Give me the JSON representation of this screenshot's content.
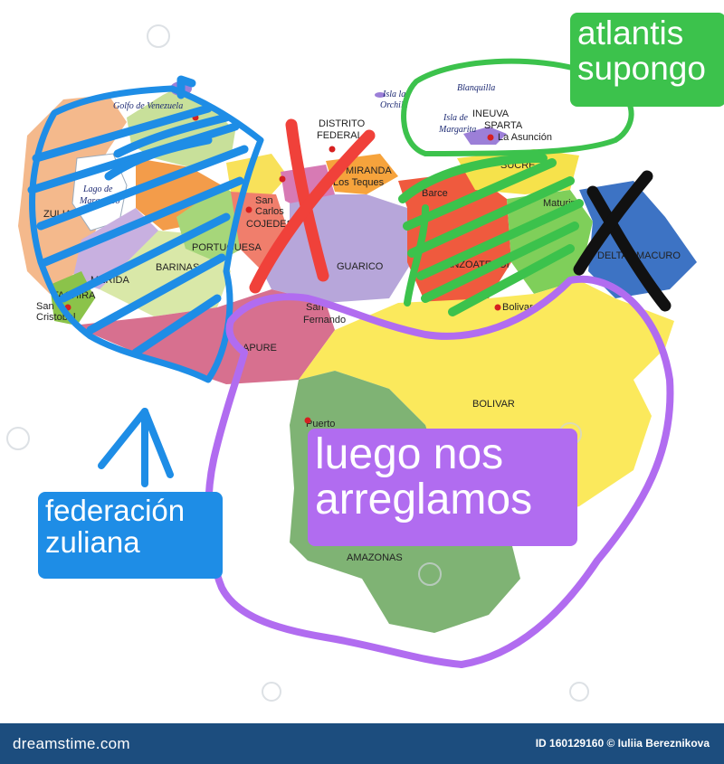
{
  "map": {
    "regions": {
      "golfo": "Golfo de Venezuela",
      "lago_1": "Lago de",
      "lago_2": "Maracaibo",
      "zulia": "ZULIA",
      "tachira": "TACHIRA",
      "san_cristobal_1": "San",
      "san_cristobal_2": "Cristobal",
      "distrito_1": "DISTRITO",
      "distrito_2": "FEDERAL",
      "miranda": "MIRANDA",
      "los_teques": "Los Teques",
      "san_carlos_1": "San",
      "san_carlos_2": "Carlos",
      "cojedes": "COJEDES",
      "guarico": "GUARICO",
      "san_fernando_1": "San",
      "san_fernando_2": "Fernando",
      "isla_orchila_1": "Isla la",
      "isla_orchila_2": "Orchila",
      "blanquilla": "Blanquilla",
      "isla_margarita_1": "Isla de",
      "isla_margarita_2": "Margarita",
      "nueva_esparta_1": "INEUVA",
      "nueva_esparta_2": "SPARTA",
      "la_asuncion": "La Asunción",
      "sucre": "SUCRE",
      "barcelona": "Barce",
      "anzoategui": "ANZOATEGUI",
      "bolivar": "BOLIVAR",
      "bolivar_city": "Bolivar",
      "amazonas": "AMAZONAS",
      "puerto_1": "Puerto",
      "maturin": "Maturin",
      "delta": "DELTA AMACURO",
      "portuguesa": "PORTUGUESA",
      "apure": "APURE",
      "barinas": "BARINAS",
      "merida": "MERIDA"
    }
  },
  "annotations": {
    "atlantis": [
      "atlantis",
      "supongo"
    ],
    "luego": [
      "luego nos",
      "arreglamos"
    ],
    "federacion": [
      "federación",
      "zuliana"
    ]
  },
  "footer": {
    "brand": "dreamstime.com",
    "credit": "ID 160129160 © Iuliia Bereznikova"
  },
  "colors": {
    "blue_scribble": "#1e8de6",
    "green_scribble": "#3cc24c",
    "purple_scribble": "#b16cf0",
    "red_cross": "#f0413a",
    "black_cross": "#111111",
    "footer_bg": "#1c4d7e"
  },
  "icons": [
    "red-x-mark-icon",
    "black-x-mark-icon",
    "blue-up-arrow-icon",
    "location-dot-icon"
  ]
}
